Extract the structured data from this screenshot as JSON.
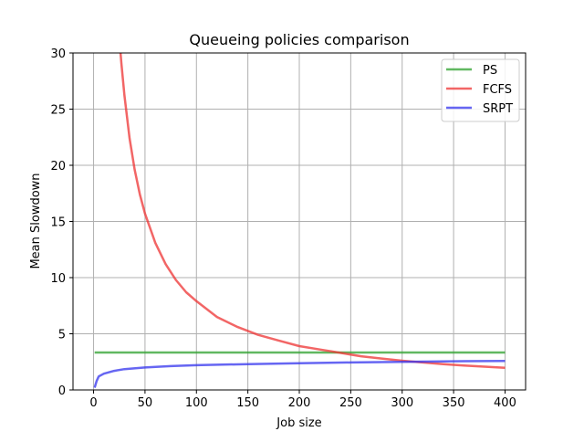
{
  "chart_data": {
    "type": "line",
    "title": "Queueing policies comparison",
    "xlabel": "Job size",
    "ylabel": "Mean Slowdown",
    "xlim": [
      -20,
      420
    ],
    "ylim": [
      0,
      30
    ],
    "xticks": [
      0,
      50,
      100,
      150,
      200,
      250,
      300,
      350,
      400
    ],
    "yticks": [
      0,
      5,
      10,
      15,
      20,
      25,
      30
    ],
    "grid": true,
    "legend_position": "top-right",
    "series": [
      {
        "name": "PS",
        "color": "#2ca02c",
        "x": [
          1,
          400
        ],
        "y": [
          3.33,
          3.33
        ]
      },
      {
        "name": "FCFS",
        "color": "#ee3333",
        "x": [
          25,
          27,
          30,
          35,
          40,
          45,
          50,
          60,
          70,
          80,
          90,
          100,
          120,
          140,
          160,
          180,
          200,
          220,
          240,
          260,
          280,
          300,
          320,
          340,
          360,
          380,
          400
        ],
        "y": [
          31.4,
          29.1,
          26.2,
          22.4,
          19.6,
          17.4,
          15.7,
          13.1,
          11.2,
          9.8,
          8.7,
          7.9,
          6.5,
          5.6,
          4.9,
          4.4,
          3.9,
          3.6,
          3.3,
          3.0,
          2.8,
          2.6,
          2.45,
          2.3,
          2.18,
          2.07,
          1.97
        ]
      },
      {
        "name": "SRPT",
        "color": "#3333ee",
        "x": [
          1,
          2,
          3,
          5,
          10,
          20,
          30,
          50,
          75,
          100,
          150,
          200,
          250,
          300,
          350,
          400
        ],
        "y": [
          0.2,
          0.5,
          0.8,
          1.2,
          1.45,
          1.7,
          1.85,
          2.0,
          2.12,
          2.2,
          2.3,
          2.38,
          2.45,
          2.5,
          2.55,
          2.58
        ]
      }
    ]
  }
}
